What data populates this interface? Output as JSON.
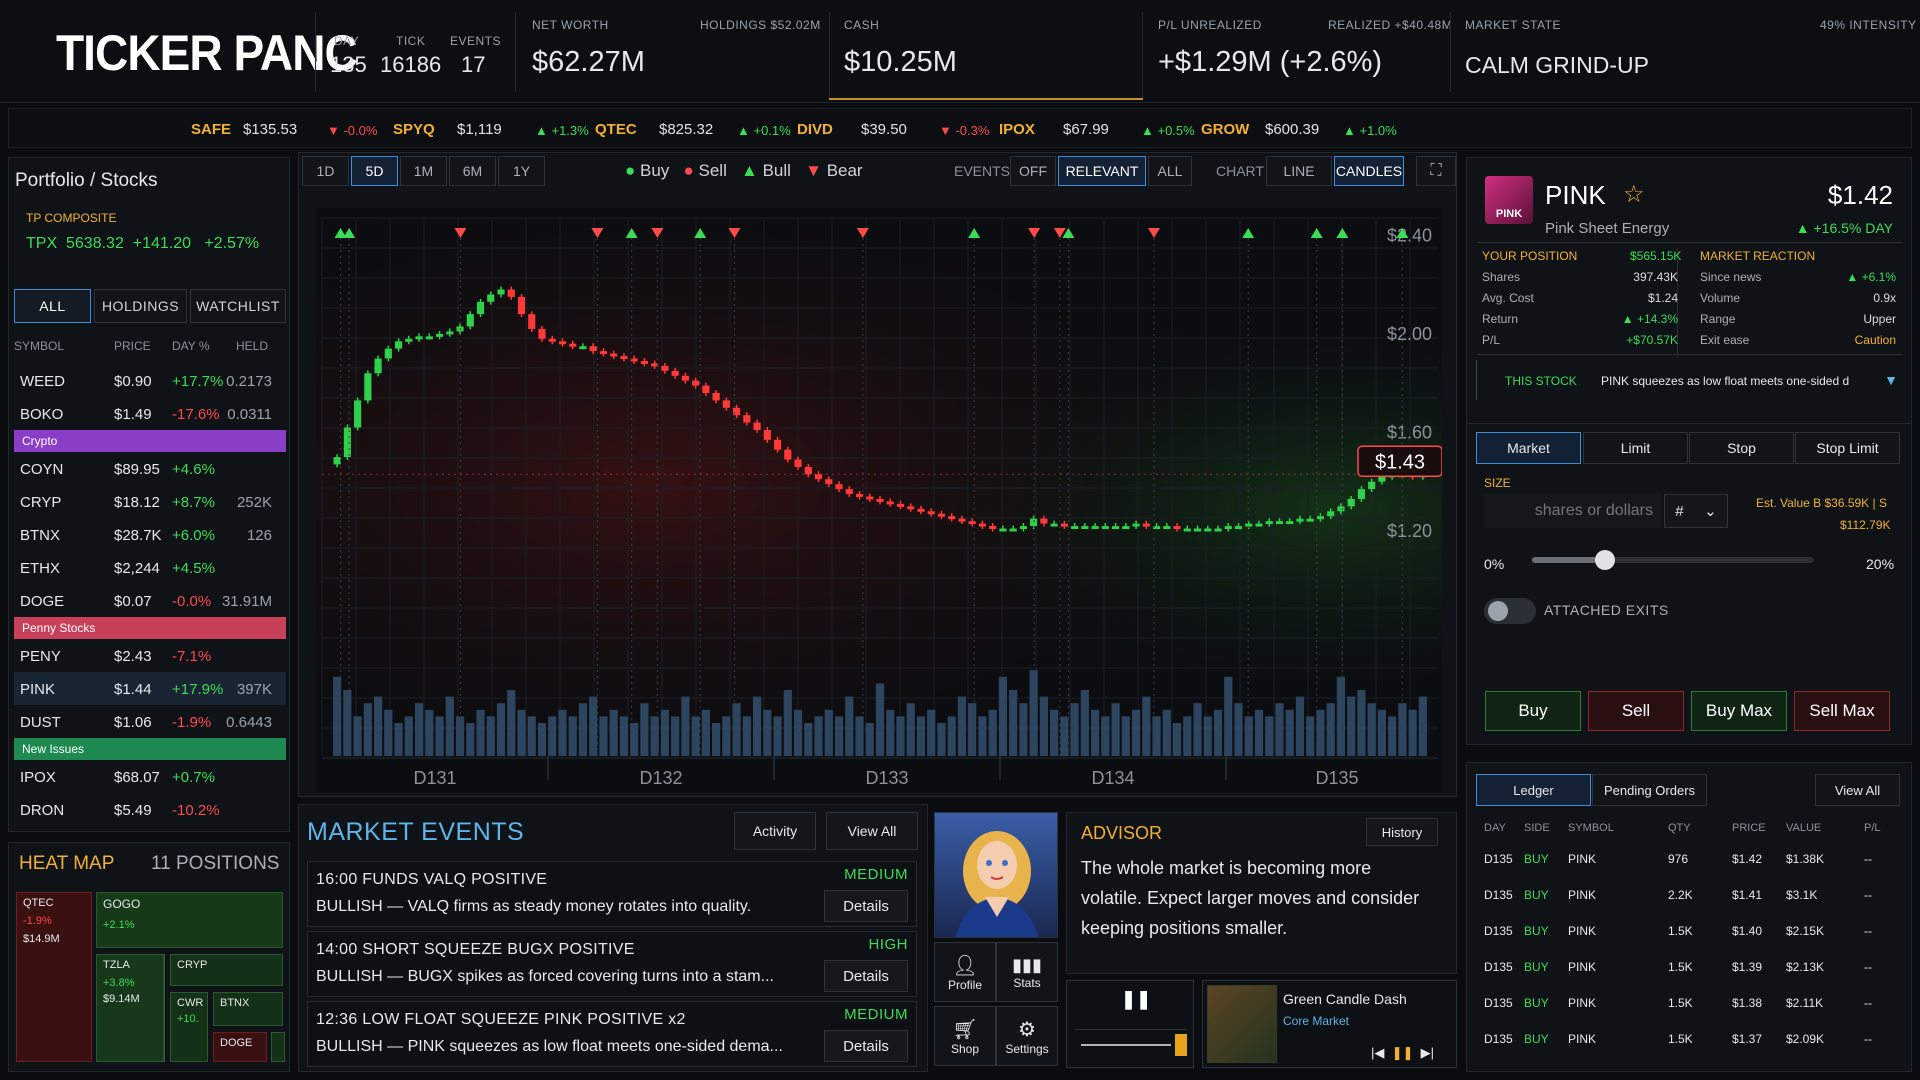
{
  "logo": {
    "part1": "TICKER PAN",
    "part2": "C"
  },
  "header": {
    "day_label": "DAY",
    "day": "135",
    "tick_label": "TICK",
    "tick": "16186",
    "events_label": "EVENTS",
    "events": "17",
    "networth_label": "NET WORTH",
    "networth": "$62.27M",
    "holdings_label": "HOLDINGS $52.02M",
    "cash_label": "CASH",
    "cash": "$10.25M",
    "pl_label": "P/L UNREALIZED",
    "pl": "+$1.29M (+2.6%)",
    "realized": "REALIZED +$40.48M",
    "market_state_label": "MARKET STATE",
    "market_state": "CALM GRIND-UP",
    "intensity": "49% INTENSITY"
  },
  "ticker": [
    {
      "sym": "SAFE",
      "price": "$135.53",
      "chg": "▼ -0.0%",
      "dir": "down"
    },
    {
      "sym": "SPYQ",
      "price": "$1,119",
      "chg": "▲ +1.3%",
      "dir": "up"
    },
    {
      "sym": "QTEC",
      "price": "$825.32",
      "chg": "▲ +0.1%",
      "dir": "up"
    },
    {
      "sym": "DIVD",
      "price": "$39.50",
      "chg": "▼ -0.3%",
      "dir": "down"
    },
    {
      "sym": "IPOX",
      "price": "$67.99",
      "chg": "▲ +0.5%",
      "dir": "up"
    },
    {
      "sym": "GROW",
      "price": "$600.39",
      "chg": "▲ +1.0%",
      "dir": "up"
    }
  ],
  "portfolio": {
    "title": "Portfolio / Stocks",
    "index_label": "TP COMPOSITE",
    "index": "TPX  5638.32  +141.20   +2.57%",
    "tabs": [
      "ALL",
      "HOLDINGS",
      "WATCHLIST"
    ],
    "cols": [
      "SYMBOL",
      "PRICE",
      "DAY %",
      "HELD"
    ],
    "rows_a": [
      [
        "WEED",
        "$0.90",
        "+17.7%",
        "0.2173",
        "up"
      ],
      [
        "BOKO",
        "$1.49",
        "-17.6%",
        "0.0311",
        "down"
      ]
    ],
    "cat_crypto": "Crypto",
    "rows_b": [
      [
        "COYN",
        "$89.95",
        "+4.6%",
        "",
        "up"
      ],
      [
        "CRYP",
        "$18.12",
        "+8.7%",
        "252K",
        "up"
      ],
      [
        "BTNX",
        "$28.7K",
        "+6.0%",
        "126",
        "up"
      ],
      [
        "ETHX",
        "$2,244",
        "+4.5%",
        "",
        "up"
      ],
      [
        "DOGE",
        "$0.07",
        "-0.0%",
        "31.91M",
        "down"
      ]
    ],
    "cat_penny": "Penny Stocks",
    "rows_c": [
      [
        "PENY",
        "$2.43",
        "-7.1%",
        "",
        "down"
      ],
      [
        "PINK",
        "$1.44",
        "+17.9%",
        "397K",
        "up"
      ],
      [
        "DUST",
        "$1.06",
        "-1.9%",
        "0.6443",
        "down"
      ]
    ],
    "cat_new": "New Issues",
    "rows_d": [
      [
        "IPOX",
        "$68.07",
        "+0.7%",
        "",
        "up"
      ],
      [
        "DRON",
        "$5.49",
        "-10.2%",
        "",
        "down"
      ]
    ]
  },
  "heatmap": {
    "title": "HEAT MAP",
    "positions": "11 POSITIONS",
    "tiles": [
      {
        "n": "QTEC",
        "c": "-1.9%",
        "v": "$14.9M"
      },
      {
        "n": "GOGO",
        "c": "+2.1%"
      },
      {
        "n": "TZLA",
        "c": "+3.8%",
        "v": "$9.14M"
      },
      {
        "n": "CRYP"
      },
      {
        "n": "CWR",
        "c": "+10."
      },
      {
        "n": "BTNX"
      },
      {
        "n": "DOGE"
      }
    ]
  },
  "chart": {
    "ranges": [
      "1D",
      "5D",
      "1M",
      "6M",
      "1Y"
    ],
    "active_range": "5D",
    "legend": {
      "buy": "Buy",
      "sell": "Sell",
      "bull": "Bull",
      "bear": "Bear"
    },
    "events_label": "EVENTS",
    "events_opts": [
      "OFF",
      "RELEVANT",
      "ALL"
    ],
    "events_active": "RELEVANT",
    "chart_label": "CHART",
    "chart_opts": [
      "LINE",
      "CANDLES"
    ],
    "chart_active": "CANDLES",
    "fullscreen_icon": "expand-icon"
  },
  "chart_data": {
    "type": "candlestick",
    "x_labels": [
      "D131",
      "D132",
      "D133",
      "D134",
      "D135"
    ],
    "y_ticks": [
      "$2.40",
      "$2.00",
      "$1.60",
      "$1.20"
    ],
    "ylim": [
      1.07,
      2.45
    ],
    "current_price": "$1.43",
    "close": [
      1.5,
      1.62,
      1.73,
      1.84,
      1.9,
      1.94,
      1.97,
      1.98,
      1.99,
      1.99,
      2.0,
      2.01,
      2.03,
      2.08,
      2.13,
      2.16,
      2.18,
      2.15,
      2.08,
      2.02,
      1.98,
      1.97,
      1.96,
      1.95,
      1.95,
      1.93,
      1.92,
      1.91,
      1.9,
      1.89,
      1.88,
      1.87,
      1.85,
      1.83,
      1.81,
      1.79,
      1.76,
      1.73,
      1.7,
      1.67,
      1.64,
      1.61,
      1.57,
      1.53,
      1.49,
      1.46,
      1.43,
      1.41,
      1.39,
      1.37,
      1.35,
      1.34,
      1.33,
      1.32,
      1.31,
      1.3,
      1.29,
      1.28,
      1.27,
      1.26,
      1.25,
      1.24,
      1.23,
      1.22,
      1.21,
      1.21,
      1.21,
      1.22,
      1.25,
      1.23,
      1.23,
      1.22,
      1.22,
      1.22,
      1.22,
      1.22,
      1.22,
      1.22,
      1.23,
      1.22,
      1.22,
      1.22,
      1.21,
      1.21,
      1.21,
      1.21,
      1.21,
      1.22,
      1.22,
      1.23,
      1.23,
      1.24,
      1.24,
      1.24,
      1.25,
      1.25,
      1.26,
      1.28,
      1.3,
      1.33,
      1.37,
      1.4,
      1.42,
      1.43,
      1.43,
      1.42,
      1.43
    ],
    "volume": [
      0.6,
      0.5,
      0.3,
      0.4,
      0.45,
      0.35,
      0.25,
      0.3,
      0.4,
      0.35,
      0.3,
      0.45,
      0.3,
      0.25,
      0.35,
      0.3,
      0.4,
      0.5,
      0.35,
      0.3,
      0.25,
      0.3,
      0.35,
      0.3,
      0.4,
      0.45,
      0.3,
      0.35,
      0.3,
      0.25,
      0.4,
      0.3,
      0.35,
      0.3,
      0.45,
      0.3,
      0.35,
      0.25,
      0.3,
      0.4,
      0.3,
      0.45,
      0.35,
      0.3,
      0.5,
      0.35,
      0.25,
      0.3,
      0.35,
      0.3,
      0.45,
      0.3,
      0.25,
      0.55,
      0.35,
      0.3,
      0.4,
      0.3,
      0.35,
      0.25,
      0.3,
      0.45,
      0.4,
      0.3,
      0.35,
      0.6,
      0.5,
      0.4,
      0.65,
      0.45,
      0.35,
      0.3,
      0.4,
      0.5,
      0.35,
      0.3,
      0.4,
      0.3,
      0.35,
      0.45,
      0.3,
      0.35,
      0.25,
      0.3,
      0.4,
      0.3,
      0.35,
      0.6,
      0.4,
      0.3,
      0.35,
      0.3,
      0.4,
      0.35,
      0.45,
      0.3,
      0.35,
      0.4,
      0.6,
      0.45,
      0.5,
      0.4,
      0.35,
      0.3,
      0.4,
      0.35,
      0.45
    ],
    "markers": [
      {
        "i": 1,
        "type": "bull"
      },
      {
        "i": 2,
        "type": "bull"
      },
      {
        "i": 15,
        "type": "bear"
      },
      {
        "i": 31,
        "type": "bear"
      },
      {
        "i": 35,
        "type": "bull"
      },
      {
        "i": 38,
        "type": "bear"
      },
      {
        "i": 43,
        "type": "bull"
      },
      {
        "i": 47,
        "type": "bear"
      },
      {
        "i": 62,
        "type": "bear"
      },
      {
        "i": 75,
        "type": "bull"
      },
      {
        "i": 82,
        "type": "bear"
      },
      {
        "i": 85,
        "type": "bear"
      },
      {
        "i": 86,
        "type": "bull"
      },
      {
        "i": 96,
        "type": "bear"
      },
      {
        "i": 107,
        "type": "bull"
      },
      {
        "i": 115,
        "type": "bull"
      },
      {
        "i": 118,
        "type": "bull"
      },
      {
        "i": 125,
        "type": "bull"
      }
    ]
  },
  "events_panel": {
    "title": "MARKET EVENTS",
    "activity": "Activity",
    "view_all": "View All",
    "items": [
      {
        "t1": "16:00  FUNDS  VALQ  POSITIVE",
        "t2": "BULLISH — VALQ firms as steady money rotates into quality.",
        "lv": "MEDIUM",
        "det": "Details"
      },
      {
        "t1": "14:00  SHORT SQUEEZE  BUGX  POSITIVE",
        "t2": "BULLISH — BUGX spikes as forced covering turns into a stam...",
        "lv": "HIGH",
        "det": "Details"
      },
      {
        "t1": "12:36  LOW FLOAT SQUEEZE  PINK  POSITIVE  x2",
        "t2": "BULLISH — PINK squeezes as low float meets one-sided dema...",
        "lv": "MEDIUM",
        "det": "Details"
      }
    ]
  },
  "nav": {
    "profile": "Profile",
    "stats": "Stats",
    "shop": "Shop",
    "settings": "Settings"
  },
  "advisor": {
    "title": "ADVISOR",
    "history": "History",
    "text": "The whole market is becoming more volatile. Expect larger moves and consider keeping positions smaller."
  },
  "music": {
    "title": "Green Candle Dash",
    "artist": "Core Market"
  },
  "stock": {
    "symbol": "PINK",
    "name": "Pink Sheet Energy",
    "price": "$1.42",
    "change": "▲ +16.5% DAY",
    "logo_text": "PINK",
    "pos_label": "YOUR POSITION",
    "pos_value": "$565.15K",
    "pos": [
      [
        "Shares",
        "397.43K"
      ],
      [
        "Avg. Cost",
        "$1.24"
      ],
      [
        "Return",
        "▲ +14.3%"
      ],
      [
        "P/L",
        "+$70.57K"
      ]
    ],
    "react_label": "MARKET REACTION",
    "react": [
      [
        "Since news",
        "▲ +6.1%"
      ],
      [
        "Volume",
        "0.9x"
      ],
      [
        "Range",
        "Upper"
      ],
      [
        "Exit ease",
        "Caution"
      ]
    ],
    "this_stock": "THIS STOCK",
    "news": "PINK squeezes as low float meets one-sided d"
  },
  "order": {
    "tabs": [
      "Market",
      "Limit",
      "Stop",
      "Stop Limit"
    ],
    "size_label": "SIZE",
    "placeholder": "shares or dollars",
    "unit": "#",
    "est": "Est. Value B $36.59K | S",
    "est2": "$112.79K",
    "pct_min": "0%",
    "pct_max": "20%",
    "slider": 0.26,
    "exits": "ATTACHED EXITS",
    "buy": "Buy",
    "sell": "Sell",
    "buymax": "Buy Max",
    "sellmax": "Sell Max"
  },
  "ledger": {
    "tabs": [
      "Ledger",
      "Pending Orders"
    ],
    "view_all": "View All",
    "cols": [
      "DAY",
      "SIDE",
      "SYMBOL",
      "QTY",
      "PRICE",
      "VALUE",
      "P/L"
    ],
    "rows": [
      [
        "D135",
        "BUY",
        "PINK",
        "976",
        "$1.42",
        "$1.38K",
        "--"
      ],
      [
        "D135",
        "BUY",
        "PINK",
        "2.2K",
        "$1.41",
        "$3.1K",
        "--"
      ],
      [
        "D135",
        "BUY",
        "PINK",
        "1.5K",
        "$1.40",
        "$2.15K",
        "--"
      ],
      [
        "D135",
        "BUY",
        "PINK",
        "1.5K",
        "$1.39",
        "$2.13K",
        "--"
      ],
      [
        "D135",
        "BUY",
        "PINK",
        "1.5K",
        "$1.38",
        "$2.11K",
        "--"
      ],
      [
        "D135",
        "BUY",
        "PINK",
        "1.5K",
        "$1.37",
        "$2.09K",
        "--"
      ]
    ]
  }
}
